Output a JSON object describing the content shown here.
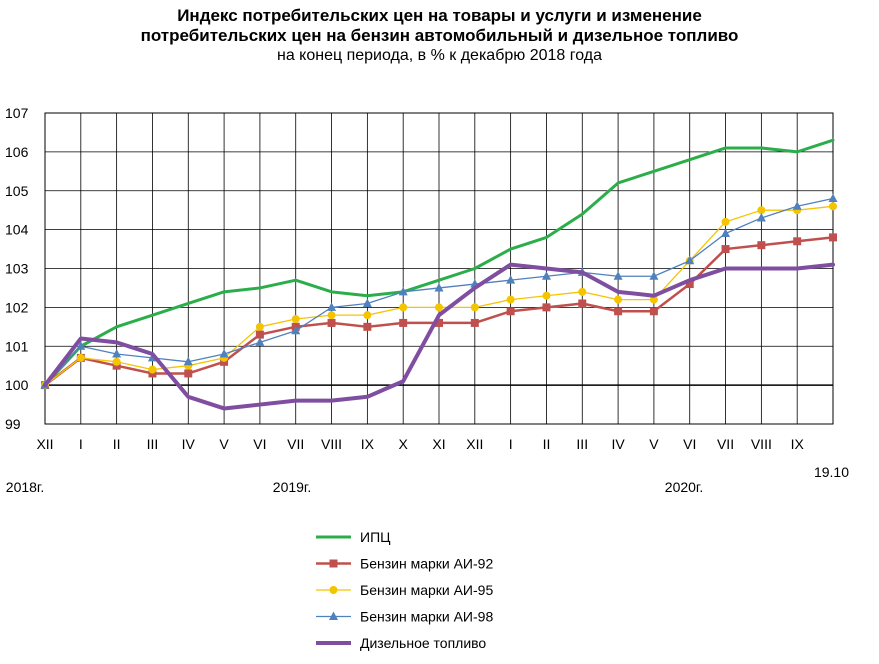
{
  "chart_data": {
    "type": "line",
    "title_line1": "Индекс потребительских цен на товары и услуги и изменение",
    "title_line2": "потребительских цен на бензин автомобильный и дизельное топливо",
    "subtitle": "на конец периода, в % к декабрю 2018 года",
    "categories": [
      "XII",
      "I",
      "II",
      "III",
      "IV",
      "V",
      "VI",
      "VII",
      "VIII",
      "IX",
      "X",
      "XI",
      "XII",
      "I",
      "II",
      "III",
      "IV",
      "V",
      "VI",
      "VII",
      "VIII",
      "IX",
      "19.10"
    ],
    "year_labels": [
      "2018г.",
      "2019г.",
      "2020г."
    ],
    "ylim": [
      99,
      107
    ],
    "yticks": [
      99,
      100,
      101,
      102,
      103,
      104,
      105,
      106,
      107
    ],
    "series": [
      {
        "name": "ИПЦ",
        "color": "#2bae4a",
        "marker": "none",
        "width": 3,
        "values": [
          100,
          101.0,
          101.5,
          101.8,
          102.1,
          102.4,
          102.5,
          102.7,
          102.4,
          102.3,
          102.4,
          102.7,
          103.0,
          103.5,
          103.8,
          104.4,
          105.2,
          105.5,
          105.8,
          106.1,
          106.1,
          106.0,
          106.3
        ]
      },
      {
        "name": "Бензин марки АИ-92",
        "color": "#c0504d",
        "marker": "square",
        "width": 2.5,
        "values": [
          100,
          100.7,
          100.5,
          100.3,
          100.3,
          100.6,
          101.3,
          101.5,
          101.6,
          101.5,
          101.6,
          101.6,
          101.6,
          101.9,
          102.0,
          102.1,
          101.9,
          101.9,
          102.6,
          103.5,
          103.6,
          103.7,
          103.8
        ]
      },
      {
        "name": "Бензин марки АИ-95",
        "color": "#f5c400",
        "marker": "circle",
        "width": 1.3,
        "values": [
          100,
          100.7,
          100.6,
          100.4,
          100.5,
          100.7,
          101.5,
          101.7,
          101.8,
          101.8,
          102.0,
          102.0,
          102.0,
          102.2,
          102.3,
          102.4,
          102.2,
          102.2,
          103.2,
          104.2,
          104.5,
          104.5,
          104.6
        ]
      },
      {
        "name": "Бензин марки АИ-98",
        "color": "#4f81bd",
        "marker": "triangle",
        "width": 1.3,
        "values": [
          100,
          101.0,
          100.8,
          100.7,
          100.6,
          100.8,
          101.1,
          101.4,
          102.0,
          102.1,
          102.4,
          102.5,
          102.6,
          102.7,
          102.8,
          102.9,
          102.8,
          102.8,
          103.2,
          103.9,
          104.3,
          104.6,
          104.8
        ]
      },
      {
        "name": "Дизельное топливо",
        "color": "#7f4ea1",
        "marker": "none",
        "width": 4,
        "values": [
          100,
          101.2,
          101.1,
          100.8,
          99.7,
          99.4,
          99.5,
          99.6,
          99.6,
          99.7,
          100.1,
          101.8,
          102.5,
          103.1,
          103.0,
          102.9,
          102.4,
          102.3,
          102.7,
          103.0,
          103.0,
          103.0,
          103.1
        ]
      }
    ],
    "baseline": 100,
    "grid": true,
    "legend_position": "bottom"
  }
}
